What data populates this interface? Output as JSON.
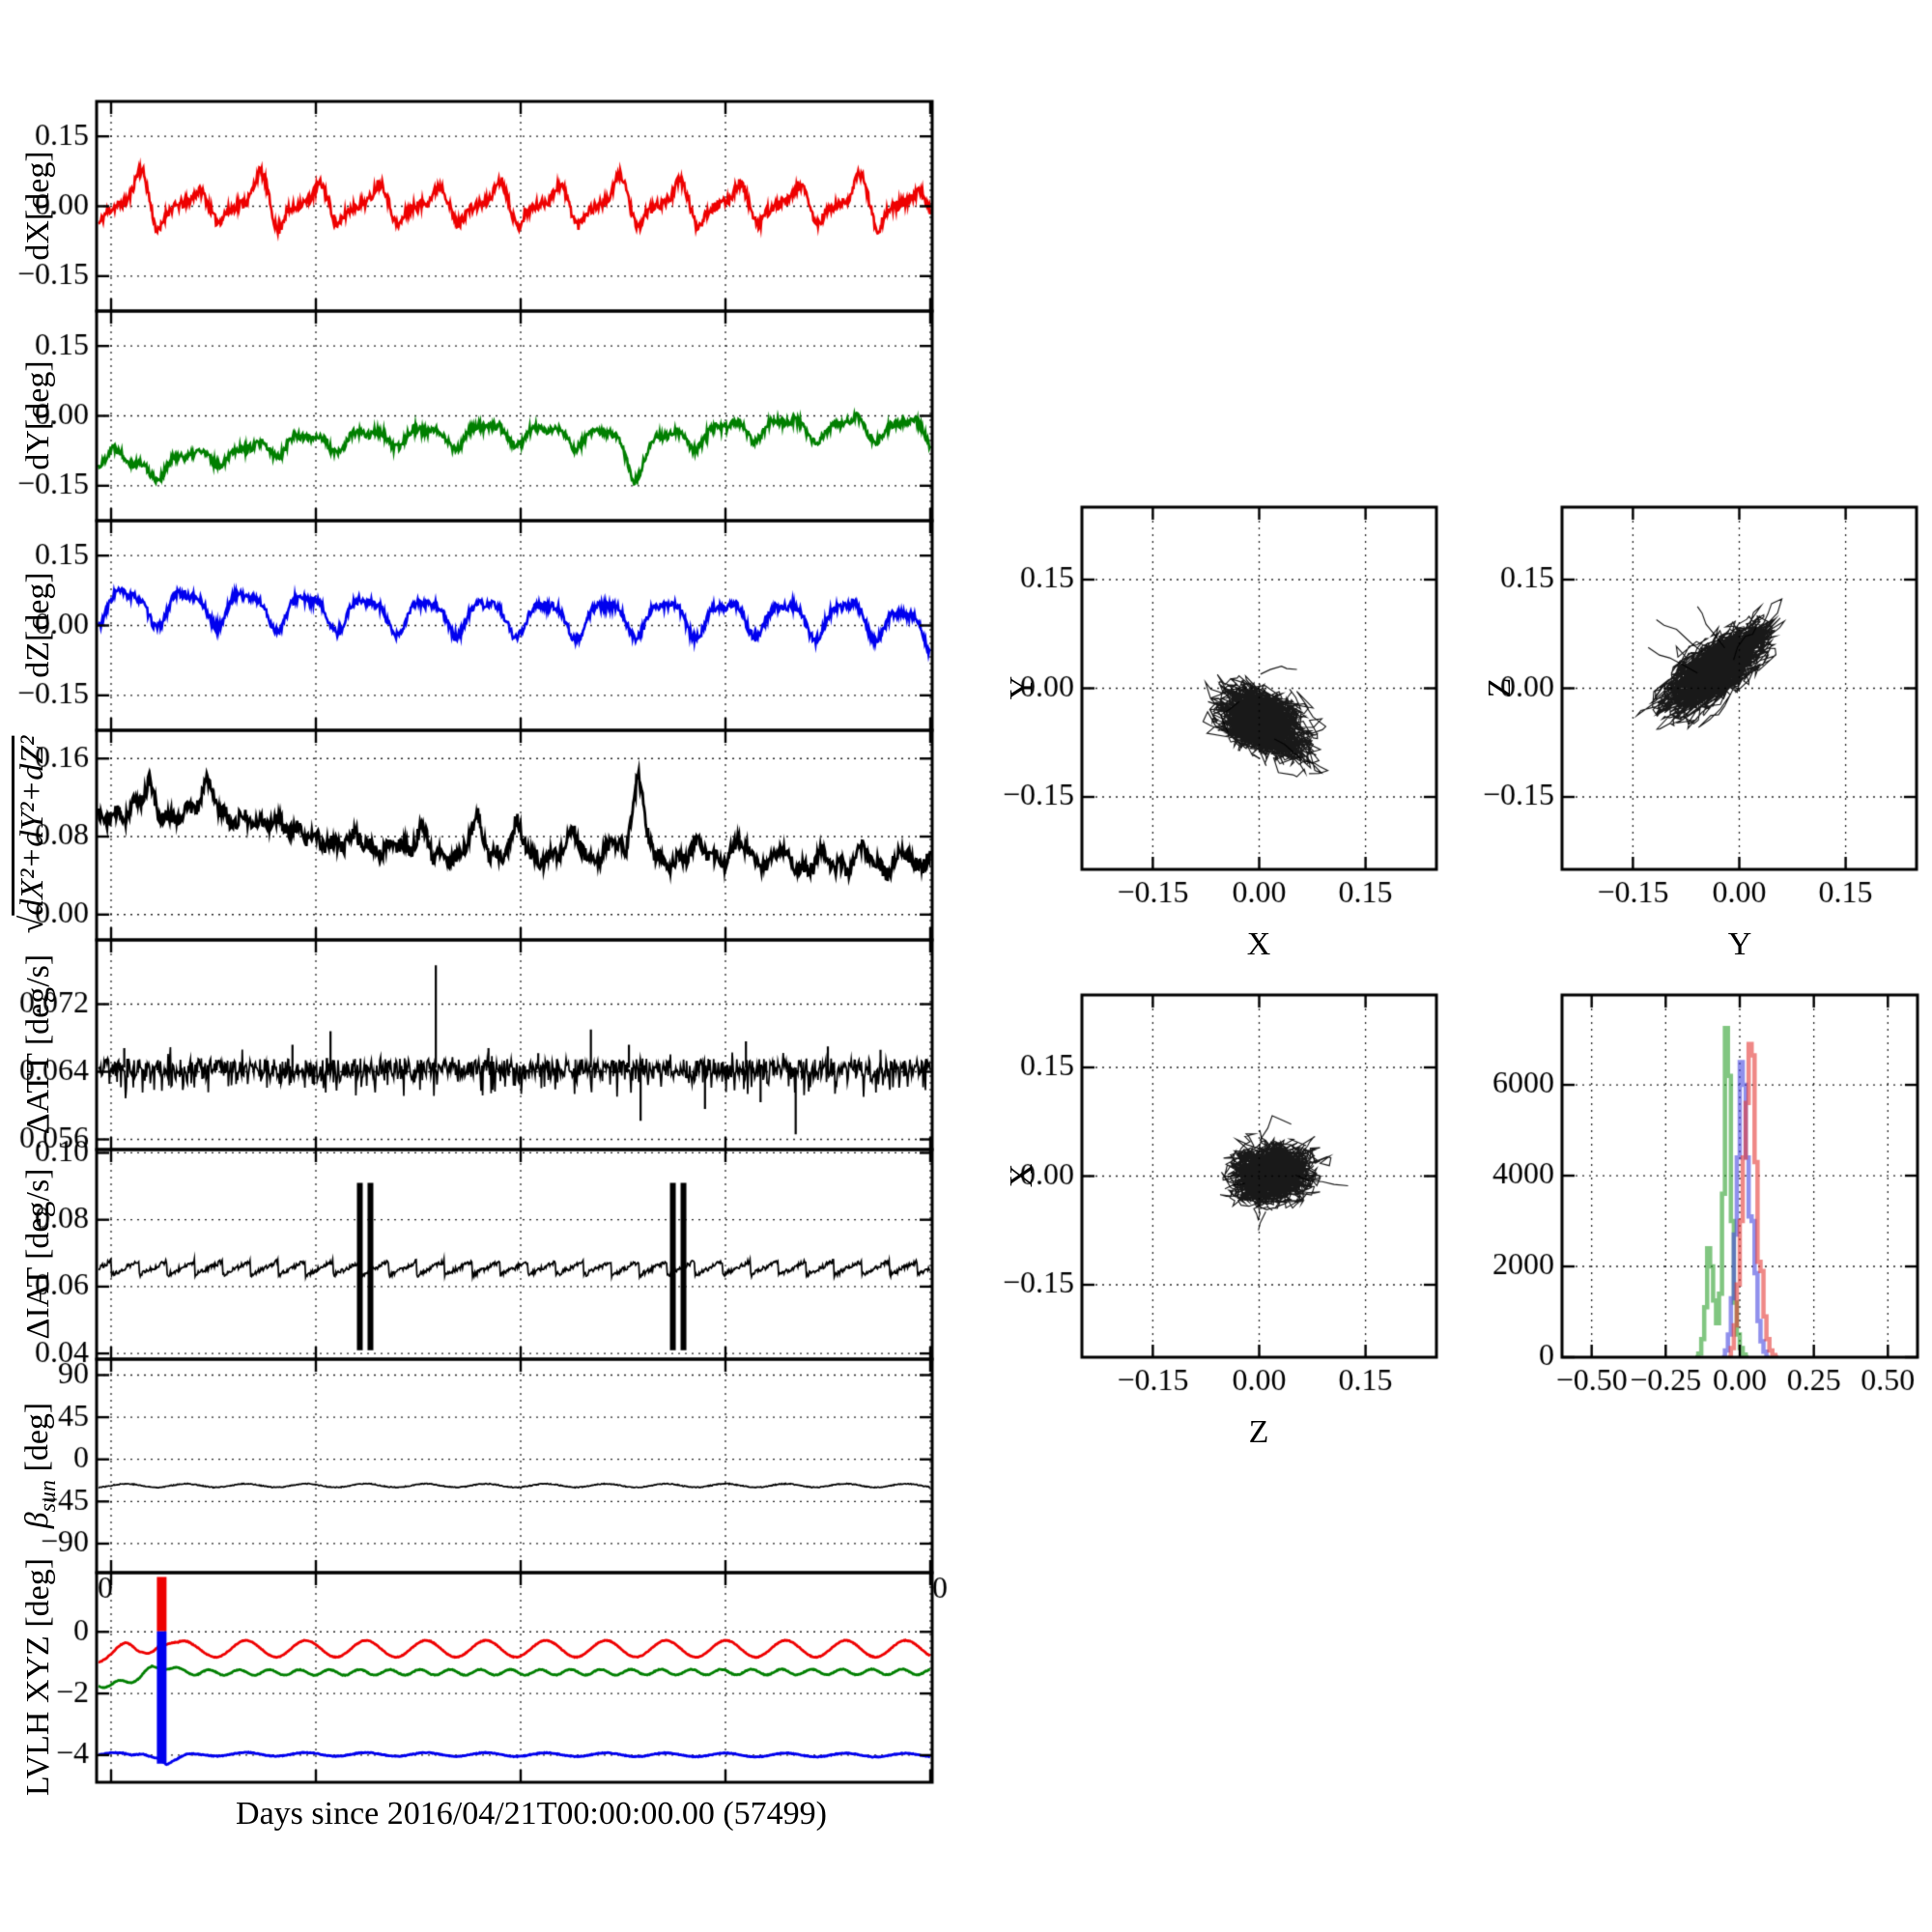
{
  "figure": {
    "background": "#ffffff"
  },
  "time_axis": {
    "xlabel": "Days since 2016/04/21T00:00:00.00 (57499)",
    "xlim": [
      -0.5,
      28.05
    ],
    "grid_days": [
      0,
      7,
      14,
      21,
      28
    ]
  },
  "chart_data": [
    {
      "type": "line",
      "panel": "dX",
      "ylabel": "dX[deg]",
      "color": "#ee0000",
      "ylim": [
        -0.225,
        0.225
      ],
      "yticks": [
        0.15,
        0.0,
        -0.15
      ],
      "ytick_labels": [
        "0.15",
        "0.00",
        "−0.15"
      ],
      "baseline": [
        [
          0,
          -0.006
        ],
        [
          28,
          -0.006
        ]
      ],
      "osc": {
        "period": 2.05,
        "sin_amp": 0.012,
        "peak_amp": 0.062,
        "dip_amp": 0.028
      },
      "noise": 0.011,
      "seed": 11
    },
    {
      "type": "line",
      "panel": "dY",
      "ylabel": "dY[deg]",
      "color": "#007f00",
      "ylim": [
        -0.225,
        0.225
      ],
      "yticks": [
        0.15,
        0.0,
        -0.15
      ],
      "ytick_labels": [
        "0.15",
        "0.00",
        "−0.15"
      ],
      "baseline": [
        [
          0,
          -0.08
        ],
        [
          0.8,
          -0.112
        ],
        [
          2.2,
          -0.105
        ],
        [
          3.5,
          -0.075
        ],
        [
          4.2,
          -0.09
        ],
        [
          5.5,
          -0.06
        ],
        [
          7,
          -0.055
        ],
        [
          8.5,
          -0.05
        ],
        [
          10,
          -0.04
        ],
        [
          11.5,
          -0.045
        ],
        [
          13,
          -0.033
        ],
        [
          14.5,
          -0.04
        ],
        [
          16,
          -0.042
        ],
        [
          17.2,
          -0.05
        ],
        [
          17.9,
          -0.115
        ],
        [
          18.6,
          -0.055
        ],
        [
          20,
          -0.045
        ],
        [
          21.5,
          -0.028
        ],
        [
          23,
          -0.02
        ],
        [
          24.5,
          -0.035
        ],
        [
          25.5,
          -0.018
        ],
        [
          26.5,
          -0.03
        ],
        [
          27.3,
          -0.02
        ],
        [
          28,
          -0.042
        ]
      ],
      "osc": {
        "period": 2.05,
        "sin_amp": 0.018,
        "sin2_amp": 0.01,
        "period2": 1.02
      },
      "noise": 0.009,
      "seed": 22
    },
    {
      "type": "line",
      "panel": "dZ",
      "ylabel": "dZ[deg]",
      "color": "#0000ee",
      "ylim": [
        -0.225,
        0.225
      ],
      "yticks": [
        0.15,
        0.0,
        -0.15
      ],
      "ytick_labels": [
        "0.15",
        "0.00",
        "−0.15"
      ],
      "baseline": [
        [
          0,
          0.045
        ],
        [
          2,
          0.04
        ],
        [
          4,
          0.042
        ],
        [
          6,
          0.033
        ],
        [
          8,
          0.03
        ],
        [
          10,
          0.022
        ],
        [
          12,
          0.022
        ],
        [
          14,
          0.02
        ],
        [
          16,
          0.016
        ],
        [
          18,
          0.02
        ],
        [
          20,
          0.018
        ],
        [
          22,
          0.02
        ],
        [
          24,
          0.015
        ],
        [
          25.5,
          0.02
        ],
        [
          27,
          0.005
        ],
        [
          28,
          -0.028
        ]
      ],
      "osc": {
        "period": 2.05,
        "sin_amp": 0.034,
        "sin2_amp": 0.012,
        "period2": 1.02
      },
      "noise": 0.009,
      "seed": 33
    },
    {
      "type": "line",
      "panel": "rss",
      "ylabel_prefix": "√",
      "ylabel_body": "dX²+dY²+dZ²",
      "color": "#000000",
      "ylim": [
        -0.026,
        0.189
      ],
      "yticks": [
        0.16,
        0.08,
        0.0
      ],
      "ytick_labels": [
        "0.16",
        "0.08",
        "0.00"
      ],
      "baseline": [
        [
          0,
          0.1
        ],
        [
          0.5,
          0.103
        ],
        [
          1,
          0.118
        ],
        [
          1.3,
          0.135
        ],
        [
          1.6,
          0.105
        ],
        [
          2,
          0.097
        ],
        [
          2.4,
          0.104
        ],
        [
          2.9,
          0.11
        ],
        [
          3.3,
          0.138
        ],
        [
          3.7,
          0.107
        ],
        [
          4.1,
          0.095
        ],
        [
          4.5,
          0.099
        ],
        [
          5,
          0.092
        ],
        [
          5.5,
          0.098
        ],
        [
          6,
          0.089
        ],
        [
          6.5,
          0.083
        ],
        [
          7,
          0.078
        ],
        [
          7.5,
          0.072
        ],
        [
          8,
          0.072
        ],
        [
          8.4,
          0.083
        ],
        [
          8.8,
          0.068
        ],
        [
          9.3,
          0.064
        ],
        [
          9.8,
          0.075
        ],
        [
          10.2,
          0.063
        ],
        [
          10.6,
          0.092
        ],
        [
          11,
          0.062
        ],
        [
          11.5,
          0.058
        ],
        [
          12,
          0.062
        ],
        [
          12.5,
          0.102
        ],
        [
          12.9,
          0.063
        ],
        [
          13.4,
          0.058
        ],
        [
          13.9,
          0.095
        ],
        [
          14.3,
          0.062
        ],
        [
          14.8,
          0.055
        ],
        [
          15.3,
          0.062
        ],
        [
          15.8,
          0.09
        ],
        [
          16.2,
          0.058
        ],
        [
          16.7,
          0.055
        ],
        [
          17.2,
          0.08
        ],
        [
          17.6,
          0.062
        ],
        [
          18,
          0.145
        ],
        [
          18.3,
          0.09
        ],
        [
          18.6,
          0.06
        ],
        [
          19.1,
          0.053
        ],
        [
          19.6,
          0.057
        ],
        [
          20.1,
          0.078
        ],
        [
          20.5,
          0.058
        ],
        [
          21,
          0.052
        ],
        [
          21.5,
          0.08
        ],
        [
          21.9,
          0.058
        ],
        [
          22.4,
          0.048
        ],
        [
          22.9,
          0.07
        ],
        [
          23.3,
          0.052
        ],
        [
          23.8,
          0.044
        ],
        [
          24.3,
          0.065
        ],
        [
          24.7,
          0.05
        ],
        [
          25.2,
          0.046
        ],
        [
          25.7,
          0.072
        ],
        [
          26.1,
          0.05
        ],
        [
          26.6,
          0.044
        ],
        [
          27.1,
          0.07
        ],
        [
          27.5,
          0.048
        ],
        [
          28,
          0.058
        ]
      ],
      "osc": {
        "period": 0.62,
        "sin_amp": 0.004
      },
      "noise": 0.0075,
      "seed": 44
    },
    {
      "type": "line",
      "panel": "dATT",
      "ylabel": "ΔATT [deg/s]",
      "color": "#000000",
      "ylim": [
        0.0548,
        0.0796
      ],
      "yticks": [
        0.072,
        0.064,
        0.056
      ],
      "ytick_labels": [
        "0.072",
        "0.064",
        "0.056"
      ],
      "baseline": [
        [
          0,
          0.0645
        ],
        [
          28,
          0.0645
        ]
      ],
      "noise": 0.0011,
      "hair": 0.0026,
      "spikes": [
        {
          "t": 0.45,
          "v": 0.0668
        },
        {
          "t": 6.2,
          "v": 0.0672
        },
        {
          "t": 7.5,
          "v": 0.0688
        },
        {
          "t": 11.1,
          "v": 0.0766
        },
        {
          "t": 12.9,
          "v": 0.0668
        },
        {
          "t": 14.6,
          "v": 0.0662
        },
        {
          "t": 16.4,
          "v": 0.069
        },
        {
          "t": 17.7,
          "v": 0.0672
        },
        {
          "t": 18.1,
          "v": 0.0582
        },
        {
          "t": 20.3,
          "v": 0.0596
        },
        {
          "t": 21.7,
          "v": 0.0676
        },
        {
          "t": 22.2,
          "v": 0.0604
        },
        {
          "t": 23.4,
          "v": 0.0566
        },
        {
          "t": 24.5,
          "v": 0.067
        },
        {
          "t": 26.3,
          "v": 0.0666
        }
      ],
      "seed": 55
    },
    {
      "type": "line",
      "panel": "dIAT",
      "ylabel": "ΔIAT [deg/s]",
      "color": "#000000",
      "ylim": [
        0.0383,
        0.101
      ],
      "yticks": [
        0.1,
        0.08,
        0.06,
        0.04
      ],
      "ytick_labels": [
        "0.10",
        "0.08",
        "0.06",
        "0.04"
      ],
      "saw": {
        "base": 0.0634,
        "amp": 0.0042,
        "period": 0.95
      },
      "bursts": [
        {
          "t": 8.7,
          "lo": 0.041,
          "hi": 0.091
        },
        {
          "t": 19.4,
          "lo": 0.041,
          "hi": 0.091
        }
      ],
      "noise": 0.0007,
      "seed": 66
    },
    {
      "type": "line",
      "panel": "beta_sun",
      "ylabel_beta": "β",
      "ylabel_sub": "sun",
      "ylabel_rest": " [deg]",
      "color": "#000000",
      "ylim": [
        -121,
        107
      ],
      "yticks": [
        90,
        45,
        0,
        -45,
        -90
      ],
      "ytick_labels": [
        "90",
        "45",
        "0",
        "−45",
        "−90"
      ],
      "xtick_end_labels": [
        "0",
        "0"
      ],
      "baseline": [
        [
          0,
          -28
        ],
        [
          28,
          -28
        ]
      ],
      "osc": {
        "period": 2.05,
        "sin_amp": 1.9
      },
      "noise": 0.5,
      "seed": 77
    },
    {
      "type": "line",
      "panel": "lvlh",
      "ylabel": "LVLH XYZ [deg]",
      "ylim": [
        -4.88,
        1.92
      ],
      "yticks": [
        0,
        -2,
        -4
      ],
      "ytick_labels": [
        "0",
        "−2",
        "−4"
      ],
      "series": [
        {
          "color": "#ee0000",
          "baseline": [
            [
              0,
              -0.72
            ],
            [
              0.5,
              -0.62
            ],
            [
              0.9,
              -0.72
            ],
            [
              1.3,
              -0.5
            ],
            [
              1.6,
              -0.22
            ],
            [
              1.9,
              -0.28
            ],
            [
              2.3,
              -0.52
            ],
            [
              2.8,
              -0.62
            ],
            [
              3.5,
              -0.55
            ],
            [
              28,
              -0.55
            ]
          ],
          "osc": {
            "period": 2.05,
            "sin_amp": 0.27
          },
          "noise": 0.012,
          "seed": 81
        },
        {
          "color": "#007f00",
          "baseline": [
            [
              0,
              -1.72
            ],
            [
              0.6,
              -1.6
            ],
            [
              1,
              -1.45
            ],
            [
              1.4,
              -1.18
            ],
            [
              1.8,
              -1.12
            ],
            [
              2.4,
              -1.28
            ],
            [
              3,
              -1.32
            ],
            [
              28,
              -1.3
            ]
          ],
          "osc": {
            "period": 1.03,
            "sin_amp": 0.09
          },
          "noise": 0.012,
          "seed": 82
        },
        {
          "color": "#0000ee",
          "baseline": [
            [
              0,
              -3.92
            ],
            [
              0.7,
              -4.05
            ],
            [
              1.1,
              -3.95
            ],
            [
              1.6,
              -4.05
            ],
            [
              1.9,
              -4.28
            ],
            [
              2.2,
              -4.18
            ],
            [
              2.6,
              -4.02
            ],
            [
              3.2,
              -3.97
            ],
            [
              28,
              -4.0
            ]
          ],
          "osc": {
            "period": 2.05,
            "sin_amp": 0.06
          },
          "noise": 0.012,
          "seed": 83
        }
      ],
      "bars": [
        {
          "t": 1.73,
          "from": 1.78,
          "to": 0.02,
          "color": "#ee0000"
        },
        {
          "t": 1.73,
          "from": 0.02,
          "to": -4.28,
          "color": "#0000ee"
        }
      ]
    },
    {
      "type": "scatter",
      "panel": "Y_vs_X",
      "xlabel": "X",
      "ylabel": "Y",
      "lim": 0.25,
      "xticks": [
        -0.15,
        0.0,
        0.15
      ],
      "xtick_labels": [
        "−0.15",
        "0.00",
        "0.15"
      ],
      "yticks": [
        0.15,
        0.0,
        -0.15
      ],
      "ytick_labels": [
        "0.15",
        "0.00",
        "−0.15"
      ],
      "center": [
        0.005,
        -0.045
      ],
      "seed": 101,
      "aniso_angle": -30,
      "aniso_ratio": 1.25,
      "step": 0.01,
      "n": 3200,
      "tails": [
        [
          [
            0.02,
            -0.07
          ],
          [
            0.05,
            -0.092
          ],
          [
            0.08,
            -0.105
          ],
          [
            0.095,
            -0.112
          ],
          [
            0.07,
            -0.118
          ]
        ],
        [
          [
            -0.03,
            -0.02
          ],
          [
            -0.055,
            -0.035
          ],
          [
            -0.045,
            -0.06
          ]
        ],
        [
          [
            0.0,
            0.02
          ],
          [
            0.03,
            0.03
          ],
          [
            0.055,
            0.025
          ]
        ]
      ]
    },
    {
      "type": "scatter",
      "panel": "Z_vs_Y",
      "xlabel": "Y",
      "ylabel": "Z",
      "lim": 0.25,
      "xticks": [
        -0.15,
        0.0,
        0.15
      ],
      "xtick_labels": [
        "−0.15",
        "0.00",
        "0.15"
      ],
      "yticks": [
        0.15,
        0.0,
        -0.15
      ],
      "ytick_labels": [
        "0.15",
        "0.00",
        "−0.15"
      ],
      "center": [
        -0.03,
        0.03
      ],
      "seed": 202,
      "aniso_angle": 40,
      "aniso_ratio": 1.9,
      "step": 0.009,
      "n": 3000,
      "tails": [
        [
          [
            -0.05,
            0.05
          ],
          [
            -0.09,
            0.08
          ],
          [
            -0.115,
            0.095
          ]
        ],
        [
          [
            -0.06,
            0.02
          ],
          [
            -0.1,
            0.04
          ],
          [
            -0.13,
            0.055
          ]
        ],
        [
          [
            -0.02,
            0.055
          ],
          [
            -0.045,
            0.09
          ],
          [
            -0.06,
            0.112
          ]
        ],
        [
          [
            -0.01,
            0.04
          ],
          [
            0.01,
            0.07
          ],
          [
            0.025,
            0.085
          ]
        ]
      ]
    },
    {
      "type": "scatter",
      "panel": "X_vs_Z",
      "xlabel": "Z",
      "ylabel": "X",
      "lim": 0.25,
      "xticks": [
        -0.15,
        0.0,
        0.15
      ],
      "xtick_labels": [
        "−0.15",
        "0.00",
        "0.15"
      ],
      "yticks": [
        0.15,
        0.0,
        -0.15
      ],
      "ytick_labels": [
        "0.15",
        "0.00",
        "−0.15"
      ],
      "center": [
        0.02,
        0.005
      ],
      "seed": 303,
      "aniso_angle": 0,
      "aniso_ratio": 1.0,
      "step": 0.0105,
      "n": 3200,
      "tails": [
        [
          [
            0.05,
            0.0
          ],
          [
            0.09,
            -0.008
          ],
          [
            0.125,
            -0.012
          ]
        ],
        [
          [
            -0.02,
            -0.01
          ],
          [
            -0.05,
            -0.018
          ]
        ],
        [
          [
            0.0,
            0.05
          ],
          [
            0.02,
            0.085
          ],
          [
            0.045,
            0.07
          ]
        ],
        [
          [
            0.01,
            -0.05
          ],
          [
            0.0,
            -0.075
          ]
        ]
      ]
    },
    {
      "type": "hist",
      "panel": "histogram",
      "xlim": [
        -0.6,
        0.6
      ],
      "ylim": [
        0,
        7980
      ],
      "xticks": [
        -0.5,
        -0.25,
        0.0,
        0.25,
        0.5
      ],
      "xtick_labels": [
        "−0.50",
        "−0.25",
        "0.00",
        "0.25",
        "0.50"
      ],
      "yticks": [
        0,
        2000,
        4000,
        6000
      ],
      "ytick_labels": [
        "0",
        "2000",
        "4000",
        "6000"
      ],
      "bin_width": 0.01,
      "alpha": 0.6,
      "series": [
        {
          "color": "#2da02d",
          "x0": -0.15,
          "counts": [
            0,
            80,
            400,
            1100,
            2400,
            2000,
            1250,
            750,
            1400,
            3600,
            7250,
            6200,
            3000,
            1200,
            500,
            200,
            60,
            0
          ]
        },
        {
          "color": "#4646e0",
          "x0": -0.06,
          "counts": [
            0,
            150,
            500,
            1300,
            2700,
            4400,
            6500,
            6000,
            4400,
            3100,
            3000,
            1850,
            800,
            350,
            120,
            0
          ]
        },
        {
          "color": "#e53935",
          "x0": -0.04,
          "counts": [
            0,
            200,
            700,
            1600,
            3000,
            4400,
            5600,
            6900,
            6650,
            4300,
            2100,
            1900,
            900,
            400,
            150,
            50,
            0
          ]
        }
      ]
    }
  ]
}
